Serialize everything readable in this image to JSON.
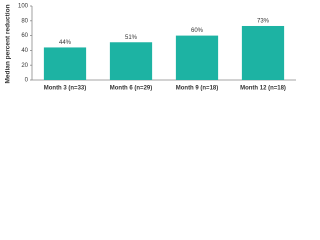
{
  "chart_data": {
    "type": "bar",
    "y_label": "Median percent reduction",
    "categories": [
      "Month 3 (n=33)",
      "Month 6 (n=29)",
      "Month 9 (n=18)",
      "Month 12 (n=18)"
    ],
    "values": [
      44,
      51,
      60,
      73
    ],
    "value_labels": [
      "44%",
      "51%",
      "60%",
      "73%"
    ],
    "color": "#1db3a3",
    "ylim": [
      0,
      100
    ],
    "yticks": [
      0,
      20,
      40,
      60,
      80,
      100
    ],
    "grid": false
  }
}
